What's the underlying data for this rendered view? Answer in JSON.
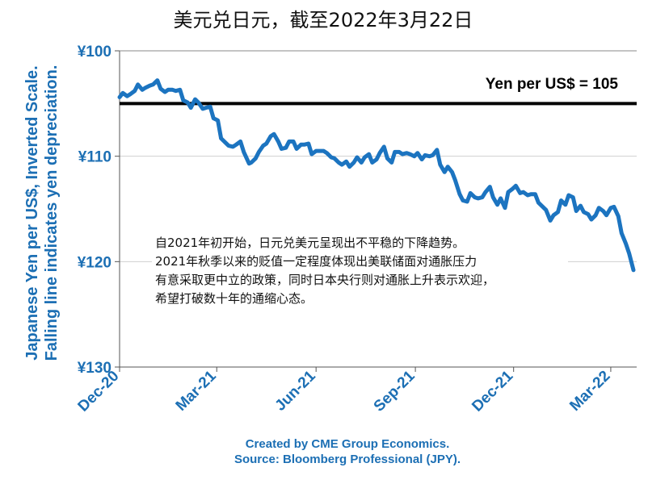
{
  "chart_data": {
    "type": "line",
    "title": "美元兑日元，截至2022年3月22日",
    "ylabel": "Japanese Yen per US$, Inverted Scale. Falling line indicates yen depreciation.",
    "ylabel_lines": [
      "Japanese Yen per US$, Inverted Scale.",
      "Falling line indicates yen depreciation."
    ],
    "y_inverted": true,
    "ylim": [
      100,
      130
    ],
    "yticks": [
      100,
      110,
      120,
      130
    ],
    "ytick_labels": [
      "¥100",
      "¥110",
      "¥120",
      "¥130"
    ],
    "xtick_labels": [
      "Dec-20",
      "Mar-21",
      "Jun-21",
      "Sep-21",
      "Dec-21",
      "Mar-22"
    ],
    "xtick_dates": [
      "2020-12-01",
      "2021-03-01",
      "2021-06-01",
      "2021-09-01",
      "2021-12-01",
      "2022-03-01"
    ],
    "xlim": [
      "2020-12-01",
      "2022-03-25"
    ],
    "grid": "horizontal",
    "reference_line": {
      "value": 105,
      "label": "Yen per US$ = 105"
    },
    "series": [
      {
        "color": "#1c74c0",
        "points": [
          [
            "2020-12-01",
            104.4
          ],
          [
            "2020-12-04",
            104.0
          ],
          [
            "2020-12-08",
            104.3
          ],
          [
            "2020-12-11",
            104.1
          ],
          [
            "2020-12-15",
            103.8
          ],
          [
            "2020-12-18",
            103.2
          ],
          [
            "2020-12-22",
            103.7
          ],
          [
            "2020-12-25",
            103.5
          ],
          [
            "2020-12-29",
            103.3
          ],
          [
            "2021-01-01",
            103.2
          ],
          [
            "2021-01-05",
            102.8
          ],
          [
            "2021-01-08",
            103.6
          ],
          [
            "2021-01-12",
            103.9
          ],
          [
            "2021-01-15",
            103.7
          ],
          [
            "2021-01-19",
            103.7
          ],
          [
            "2021-01-22",
            103.8
          ],
          [
            "2021-01-26",
            103.7
          ],
          [
            "2021-01-29",
            104.7
          ],
          [
            "2021-02-02",
            104.9
          ],
          [
            "2021-02-05",
            105.4
          ],
          [
            "2021-02-09",
            104.6
          ],
          [
            "2021-02-12",
            104.9
          ],
          [
            "2021-02-16",
            105.5
          ],
          [
            "2021-02-19",
            105.4
          ],
          [
            "2021-02-23",
            105.3
          ],
          [
            "2021-02-26",
            106.4
          ],
          [
            "2021-03-02",
            106.6
          ],
          [
            "2021-03-05",
            108.3
          ],
          [
            "2021-03-09",
            108.7
          ],
          [
            "2021-03-12",
            109.0
          ],
          [
            "2021-03-16",
            109.1
          ],
          [
            "2021-03-19",
            108.9
          ],
          [
            "2021-03-23",
            108.6
          ],
          [
            "2021-03-26",
            109.6
          ],
          [
            "2021-03-31",
            110.7
          ],
          [
            "2021-04-02",
            110.6
          ],
          [
            "2021-04-06",
            110.2
          ],
          [
            "2021-04-09",
            109.6
          ],
          [
            "2021-04-13",
            109.0
          ],
          [
            "2021-04-16",
            108.8
          ],
          [
            "2021-04-20",
            108.1
          ],
          [
            "2021-04-23",
            107.9
          ],
          [
            "2021-04-27",
            108.6
          ],
          [
            "2021-04-30",
            109.3
          ],
          [
            "2021-05-04",
            109.2
          ],
          [
            "2021-05-07",
            108.6
          ],
          [
            "2021-05-11",
            108.6
          ],
          [
            "2021-05-14",
            109.3
          ],
          [
            "2021-05-18",
            108.9
          ],
          [
            "2021-05-21",
            108.9
          ],
          [
            "2021-05-25",
            108.8
          ],
          [
            "2021-05-28",
            109.8
          ],
          [
            "2021-06-01",
            109.5
          ],
          [
            "2021-06-04",
            109.5
          ],
          [
            "2021-06-08",
            109.5
          ],
          [
            "2021-06-11",
            109.7
          ],
          [
            "2021-06-15",
            110.1
          ],
          [
            "2021-06-18",
            110.2
          ],
          [
            "2021-06-22",
            110.6
          ],
          [
            "2021-06-25",
            110.8
          ],
          [
            "2021-06-29",
            110.5
          ],
          [
            "2021-07-02",
            111.0
          ],
          [
            "2021-07-06",
            110.6
          ],
          [
            "2021-07-09",
            110.1
          ],
          [
            "2021-07-13",
            110.6
          ],
          [
            "2021-07-16",
            110.1
          ],
          [
            "2021-07-20",
            109.8
          ],
          [
            "2021-07-23",
            110.6
          ],
          [
            "2021-07-27",
            110.3
          ],
          [
            "2021-07-30",
            109.7
          ],
          [
            "2021-08-03",
            109.1
          ],
          [
            "2021-08-06",
            110.2
          ],
          [
            "2021-08-10",
            110.6
          ],
          [
            "2021-08-13",
            109.6
          ],
          [
            "2021-08-17",
            109.6
          ],
          [
            "2021-08-20",
            109.8
          ],
          [
            "2021-08-24",
            109.7
          ],
          [
            "2021-08-27",
            109.8
          ],
          [
            "2021-08-31",
            110.0
          ],
          [
            "2021-09-03",
            109.7
          ],
          [
            "2021-09-07",
            110.3
          ],
          [
            "2021-09-10",
            109.9
          ],
          [
            "2021-09-14",
            110.0
          ],
          [
            "2021-09-17",
            109.9
          ],
          [
            "2021-09-21",
            109.4
          ],
          [
            "2021-09-24",
            110.8
          ],
          [
            "2021-09-28",
            111.5
          ],
          [
            "2021-10-01",
            111.0
          ],
          [
            "2021-10-05",
            111.5
          ],
          [
            "2021-10-08",
            112.3
          ],
          [
            "2021-10-12",
            113.6
          ],
          [
            "2021-10-15",
            114.2
          ],
          [
            "2021-10-19",
            114.3
          ],
          [
            "2021-10-22",
            113.5
          ],
          [
            "2021-10-26",
            113.9
          ],
          [
            "2021-10-29",
            114.0
          ],
          [
            "2021-11-02",
            113.9
          ],
          [
            "2021-11-05",
            113.4
          ],
          [
            "2021-11-09",
            112.9
          ],
          [
            "2021-11-12",
            113.9
          ],
          [
            "2021-11-16",
            114.6
          ],
          [
            "2021-11-19",
            114.0
          ],
          [
            "2021-11-23",
            114.9
          ],
          [
            "2021-11-26",
            113.4
          ],
          [
            "2021-11-30",
            113.1
          ],
          [
            "2021-12-03",
            112.8
          ],
          [
            "2021-12-07",
            113.5
          ],
          [
            "2021-12-10",
            113.4
          ],
          [
            "2021-12-14",
            113.7
          ],
          [
            "2021-12-17",
            113.6
          ],
          [
            "2021-12-21",
            113.6
          ],
          [
            "2021-12-24",
            114.4
          ],
          [
            "2021-12-28",
            114.8
          ],
          [
            "2021-12-31",
            115.1
          ],
          [
            "2022-01-04",
            116.1
          ],
          [
            "2022-01-07",
            115.6
          ],
          [
            "2022-01-11",
            115.3
          ],
          [
            "2022-01-14",
            114.2
          ],
          [
            "2022-01-18",
            114.6
          ],
          [
            "2022-01-21",
            113.7
          ],
          [
            "2022-01-25",
            113.9
          ],
          [
            "2022-01-28",
            115.2
          ],
          [
            "2022-02-01",
            114.7
          ],
          [
            "2022-02-04",
            115.3
          ],
          [
            "2022-02-08",
            115.5
          ],
          [
            "2022-02-11",
            116.0
          ],
          [
            "2022-02-15",
            115.6
          ],
          [
            "2022-02-18",
            114.9
          ],
          [
            "2022-02-22",
            115.2
          ],
          [
            "2022-02-25",
            115.6
          ],
          [
            "2022-03-01",
            114.9
          ],
          [
            "2022-03-04",
            114.8
          ],
          [
            "2022-03-08",
            115.7
          ],
          [
            "2022-03-11",
            117.3
          ],
          [
            "2022-03-15",
            118.3
          ],
          [
            "2022-03-18",
            119.2
          ],
          [
            "2022-03-22",
            120.8
          ]
        ]
      }
    ]
  },
  "annotation": {
    "lines": [
      "自2021年初开始，日元兑美元呈现出不平稳的下降趋势。",
      "2021年秋季以来的贬值一定程度体现出美联储面对通胀压力",
      "有意采取更中立的政策，同时日本央行则对通胀上升表示欢迎，",
      "希望打破数十年的通缩心态。"
    ]
  },
  "source": {
    "lines": [
      "Created by CME Group Economics.",
      "Source: Bloomberg Professional (JPY)."
    ]
  }
}
